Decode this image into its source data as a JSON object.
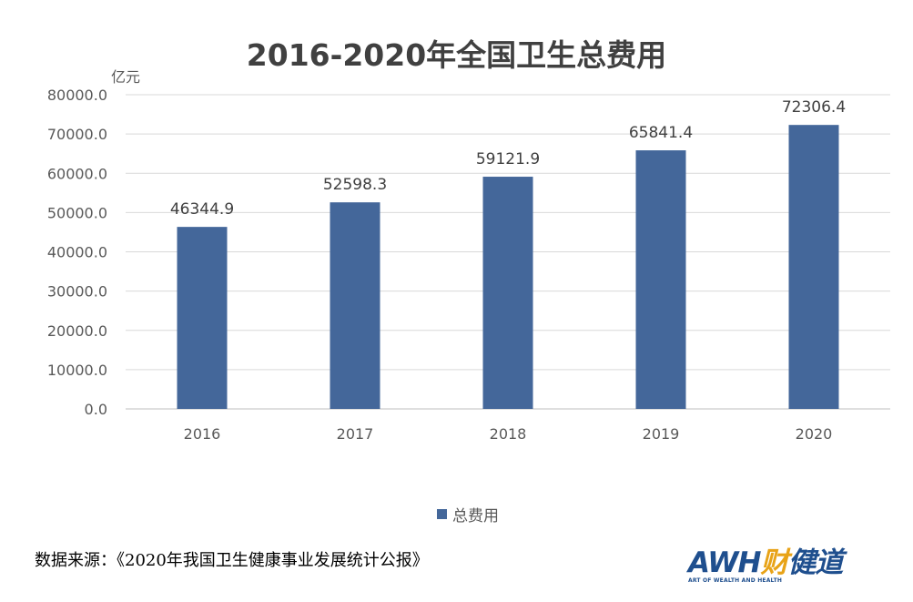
{
  "chart_data": {
    "type": "bar",
    "title": "2016-2020年全国卫生总费用",
    "ylabel": "亿元",
    "xlabel": "",
    "categories": [
      "2016",
      "2017",
      "2018",
      "2019",
      "2020"
    ],
    "series": [
      {
        "name": "总费用",
        "values": [
          46344.9,
          52598.3,
          59121.9,
          65841.4,
          72306.4
        ],
        "labels": [
          "46344.9",
          "52598.3",
          "59121.9",
          "65841.4",
          "72306.4"
        ],
        "color": "#44679a"
      }
    ],
    "ylim": [
      0,
      80000
    ],
    "yticks": [
      "0.0",
      "10000.0",
      "20000.0",
      "30000.0",
      "40000.0",
      "50000.0",
      "60000.0",
      "70000.0",
      "80000.0"
    ],
    "grid": true,
    "legend_position": "bottom"
  },
  "source": "数据来源：《2020年我国卫生健康事业发展统计公报》",
  "logo": {
    "main": "AWH",
    "accent_char": "财",
    "rest": "健道",
    "sub": "ART OF WEALTH AND HEALTH"
  },
  "colors": {
    "bar": "#44679a",
    "grid": "#d9d9d9",
    "brand_blue": "#1f4f8e",
    "brand_orange": "#e8a317"
  }
}
